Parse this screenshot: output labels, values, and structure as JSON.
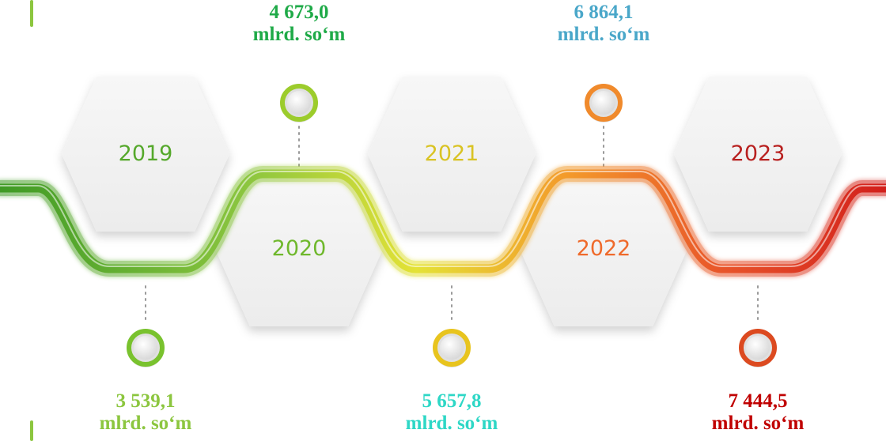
{
  "timeline": {
    "unit": "mlrd. so‘m",
    "colors": {
      "track_start": "#4caf2a",
      "track_end": "#d8221e",
      "edge_bar": "#8cc63f"
    },
    "entries": [
      {
        "year": "2019",
        "value": "3 539,1",
        "year_color": "#55a82b",
        "value_color": "#8cc63f",
        "ring_color": "#79c22e"
      },
      {
        "year": "2020",
        "value": "4 673,0",
        "year_color": "#6fb82c",
        "value_color": "#1faa48",
        "ring_color": "#9ccc2c"
      },
      {
        "year": "2021",
        "value": "5 657,8",
        "year_color": "#d9c323",
        "value_color": "#2ed7c6",
        "ring_color": "#e8c41e"
      },
      {
        "year": "2022",
        "value": "6 864,1",
        "year_color": "#ef6a2b",
        "value_color": "#4aa7c9",
        "ring_color": "#f08a2c"
      },
      {
        "year": "2023",
        "value": "7 444,5",
        "year_color": "#b8201f",
        "value_color": "#c00000",
        "ring_color": "#dc4a20"
      }
    ]
  }
}
